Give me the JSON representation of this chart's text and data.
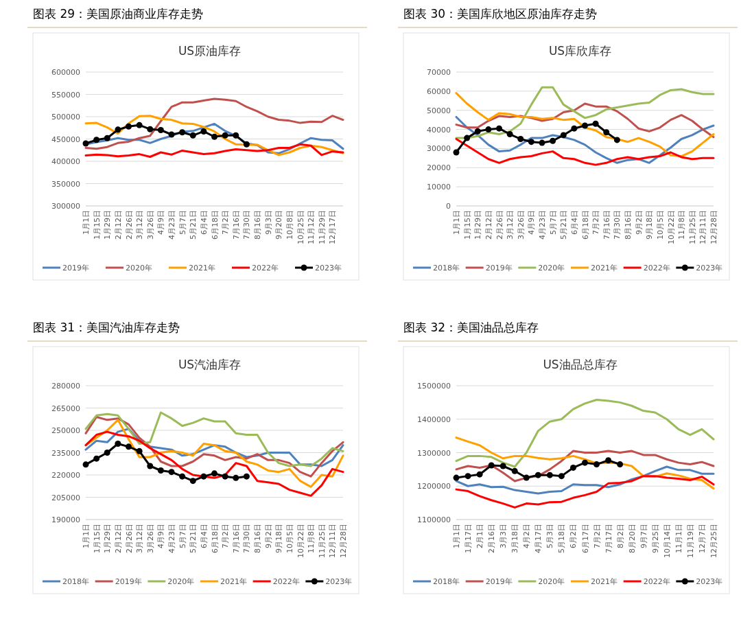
{
  "chart_data": [
    {
      "type": "line",
      "title": "图表 29：美国原油商业库存走势",
      "subtitle": "US原油库存",
      "categories": [
        "1月1日",
        "1月15日",
        "1月29日",
        "2月12日",
        "2月26日",
        "3月12日",
        "3月26日",
        "4月9日",
        "4月23日",
        "5月7日",
        "5月21日",
        "6月4日",
        "6月18日",
        "7月2日",
        "7月16日",
        "7月30日",
        "8月16日",
        "9月3日",
        "9月20日",
        "10月8日",
        "10月25日",
        "11月12日",
        "11月29日",
        "12月17日",
        null
      ],
      "ylim": [
        300000,
        600000
      ],
      "yticks": [
        300000,
        350000,
        400000,
        450000,
        500000,
        550000,
        600000
      ],
      "grid": "y",
      "legend": "bottom",
      "series": [
        {
          "name": "2019年",
          "color": "#4f81bd",
          "values": [
            438000,
            443000,
            447000,
            452000,
            448000,
            448000,
            441000,
            450000,
            457000,
            466000,
            468000,
            476000,
            484000,
            468000,
            457000,
            440000,
            436000,
            420000,
            418000,
            427000,
            440000,
            452000,
            448000,
            447000,
            428000
          ]
        },
        {
          "name": "2020年",
          "color": "#c0504d",
          "values": [
            430000,
            428000,
            432000,
            441000,
            444000,
            452000,
            457000,
            490000,
            522000,
            532000,
            532000,
            536000,
            540000,
            538000,
            535000,
            522000,
            512000,
            500000,
            493000,
            491000,
            486000,
            489000,
            488000,
            502000,
            493000
          ]
        },
        {
          "name": "2021年",
          "color": "#ffa000",
          "values": [
            485000,
            486000,
            476000,
            462000,
            485000,
            501000,
            502000,
            495000,
            493000,
            485000,
            484000,
            477000,
            467000,
            450000,
            438000,
            437000,
            437000,
            425000,
            414000,
            420000,
            430000,
            435000,
            432000,
            425000,
            418000
          ]
        },
        {
          "name": "2022年",
          "color": "#ff0000",
          "values": [
            413000,
            415000,
            414000,
            411000,
            413000,
            416000,
            410000,
            420000,
            415000,
            424000,
            420000,
            416000,
            418000,
            423000,
            427000,
            425000,
            423000,
            425000,
            430000,
            430000,
            438000,
            435000,
            414000,
            422000,
            420000
          ]
        },
        {
          "name": "2023年",
          "color": "#000000",
          "marker": "circle",
          "values": [
            440000,
            448000,
            452000,
            471000,
            478000,
            481000,
            472000,
            470000,
            460000,
            465000,
            458000,
            467000,
            455000,
            458000,
            458000,
            438000,
            null,
            null,
            null,
            null,
            null,
            null,
            null,
            null,
            null
          ]
        }
      ]
    },
    {
      "type": "line",
      "title": "图表 30：美国库欣地区原油库存走势",
      "subtitle": "US库欣库存",
      "categories": [
        "1月1日",
        "1月15日",
        "1月29日",
        "2月12日",
        "2月26日",
        "3月12日",
        "3月26日",
        "4月9日",
        "4月23日",
        "5月7日",
        "5月21日",
        "6月4日",
        "6月18日",
        "7月2日",
        "7月16日",
        "7月30日",
        "8月16日",
        "9月2日",
        "9月18日",
        "10月5日",
        "10月22日",
        "11月8日",
        "11月25日",
        "12月11日",
        "12月28日"
      ],
      "ylim": [
        0,
        70000
      ],
      "yticks": [
        0,
        10000,
        20000,
        30000,
        40000,
        50000,
        60000,
        70000
      ],
      "grid": "y",
      "legend": "bottom",
      "series": [
        {
          "name": "2018年",
          "color": "#4f81bd",
          "values": [
            46500,
            41000,
            37000,
            32000,
            28500,
            29000,
            32000,
            35500,
            35500,
            37000,
            36000,
            34500,
            32000,
            28000,
            25000,
            22500,
            24000,
            24500,
            22500,
            26500,
            30500,
            35000,
            37000,
            40000,
            42000
          ]
        },
        {
          "name": "2019年",
          "color": "#c0504d",
          "values": [
            42500,
            41000,
            41000,
            44500,
            47000,
            46500,
            47000,
            46000,
            44500,
            45500,
            49000,
            50000,
            53500,
            52000,
            52000,
            49500,
            45500,
            40500,
            39000,
            41000,
            45000,
            47500,
            44500,
            40000,
            36000
          ]
        },
        {
          "name": "2020年",
          "color": "#9bbb59",
          "values": [
            35500,
            35500,
            36500,
            38500,
            37500,
            39000,
            43000,
            53000,
            62000,
            62000,
            53000,
            49500,
            46000,
            47500,
            50500,
            51500,
            52500,
            53500,
            54000,
            58000,
            60500,
            61000,
            59500,
            58500,
            58500
          ]
        },
        {
          "name": "2021年",
          "color": "#ffa000",
          "values": [
            59000,
            53500,
            49000,
            45000,
            48500,
            48000,
            46500,
            46500,
            45500,
            46000,
            45000,
            45500,
            41000,
            39500,
            36000,
            35000,
            33500,
            35500,
            33500,
            31000,
            26500,
            26000,
            28500,
            33000,
            37500
          ]
        },
        {
          "name": "2022年",
          "color": "#ff0000",
          "values": [
            35000,
            31500,
            28000,
            24500,
            22500,
            24500,
            25500,
            26000,
            27500,
            28500,
            25000,
            24500,
            22500,
            21500,
            22500,
            24500,
            25500,
            24500,
            25500,
            26000,
            28000,
            25500,
            24500,
            25000,
            25000
          ]
        },
        {
          "name": "2023年",
          "color": "#000000",
          "marker": "circle",
          "values": [
            28000,
            35500,
            39000,
            40000,
            40500,
            37500,
            35000,
            33500,
            33000,
            34000,
            37000,
            40500,
            42000,
            43000,
            38500,
            34500,
            null,
            null,
            null,
            null,
            null,
            null,
            null,
            null,
            null
          ]
        }
      ]
    },
    {
      "type": "line",
      "title": "图表 31：美国汽油库存走势",
      "subtitle": "US汽油库存",
      "categories": [
        "1月1日",
        "1月15日",
        "1月29日",
        "2月12日",
        "2月26日",
        "3月12日",
        "3月26日",
        "4月9日",
        "4月23日",
        "5月7日",
        "5月21日",
        "6月4日",
        "6月18日",
        "7月2日",
        "7月16日",
        "7月30日",
        "8月16日",
        "9月2日",
        "9月18日",
        "10月5日",
        "10月22日",
        "11月8日",
        "11月25日",
        "12月11日",
        "12月28日"
      ],
      "ylim": [
        190000,
        280000
      ],
      "yticks": [
        190000,
        205000,
        220000,
        235000,
        250000,
        265000,
        280000
      ],
      "grid": "y",
      "legend": "bottom",
      "series": [
        {
          "name": "2018年",
          "color": "#4f81bd",
          "values": [
            237000,
            243000,
            242000,
            249000,
            251000,
            243000,
            239000,
            238000,
            237000,
            233000,
            234000,
            237000,
            240000,
            239000,
            235000,
            232000,
            233000,
            235000,
            235000,
            235000,
            227000,
            227000,
            226000,
            230000,
            240000
          ]
        },
        {
          "name": "2019年",
          "color": "#c0504d",
          "values": [
            248000,
            259000,
            257000,
            258000,
            254000,
            245000,
            239000,
            229000,
            226000,
            226000,
            229000,
            234000,
            233000,
            230000,
            232000,
            231000,
            234000,
            230000,
            230000,
            228000,
            222000,
            219000,
            228000,
            236000,
            242000
          ]
        },
        {
          "name": "2020年",
          "color": "#9bbb59",
          "values": [
            251000,
            260000,
            261000,
            260000,
            251000,
            241000,
            242000,
            262000,
            258000,
            253000,
            255000,
            258000,
            256000,
            256000,
            248000,
            247000,
            247000,
            235000,
            228000,
            226000,
            227000,
            226000,
            231000,
            238000,
            236000
          ]
        },
        {
          "name": "2021年",
          "color": "#ffa000",
          "values": [
            240000,
            245000,
            250000,
            257000,
            244000,
            232000,
            232000,
            235000,
            236000,
            235000,
            233000,
            241000,
            240000,
            236000,
            235000,
            229000,
            227000,
            223000,
            222000,
            224000,
            216000,
            212000,
            220000,
            219000,
            233000
          ]
        },
        {
          "name": "2022年",
          "color": "#ff0000",
          "values": [
            240000,
            247000,
            249000,
            247000,
            246000,
            243000,
            238000,
            234000,
            230000,
            224000,
            220000,
            219000,
            218000,
            220000,
            228000,
            226000,
            216000,
            215000,
            214000,
            210000,
            208000,
            206000,
            213000,
            224000,
            222000
          ]
        },
        {
          "name": "2023年",
          "color": "#000000",
          "marker": "circle",
          "values": [
            227000,
            231000,
            235000,
            241000,
            239000,
            236000,
            226000,
            223000,
            222000,
            219000,
            216000,
            219000,
            221000,
            219000,
            218000,
            219000,
            null,
            null,
            null,
            null,
            null,
            null,
            null,
            null,
            null
          ]
        }
      ]
    },
    {
      "type": "line",
      "title": "图表 32：美国油品总库存",
      "subtitle": "US油品总库存",
      "categories": [
        "1月1日",
        "1月17日",
        "2月1日",
        "2月16日",
        "3月3日",
        "3月18日",
        "4月2日",
        "4月17日",
        "5月3日",
        "5月18日",
        "6月2日",
        "6月17日",
        "7月2日",
        "7月17日",
        "8月2日",
        "8月20日",
        "9月7日",
        "9月25日",
        "10月14日",
        "11月1日",
        "11月19日",
        "12月7日",
        "12月25日"
      ],
      "ylim": [
        1100000,
        1500000
      ],
      "yticks": [
        1100000,
        1200000,
        1300000,
        1400000,
        1500000
      ],
      "grid": "y",
      "legend": "bottom",
      "series": [
        {
          "name": "2018年",
          "color": "#4f81bd",
          "values": [
            1215000,
            1200000,
            1205000,
            1197000,
            1198000,
            1188000,
            1183000,
            1178000,
            1183000,
            1185000,
            1205000,
            1203000,
            1203000,
            1197000,
            1205000,
            1220000,
            1230000,
            1245000,
            1258000,
            1248000,
            1248000,
            1237000,
            1237000
          ]
        },
        {
          "name": "2019年",
          "color": "#c0504d",
          "values": [
            1250000,
            1260000,
            1255000,
            1262000,
            1240000,
            1215000,
            1225000,
            1230000,
            1250000,
            1275000,
            1305000,
            1300000,
            1300000,
            1305000,
            1300000,
            1305000,
            1293000,
            1293000,
            1280000,
            1270000,
            1265000,
            1272000,
            1260000
          ]
        },
        {
          "name": "2020年",
          "color": "#9bbb59",
          "values": [
            1275000,
            1290000,
            1290000,
            1287000,
            1270000,
            1258000,
            1300000,
            1365000,
            1393000,
            1400000,
            1430000,
            1447000,
            1458000,
            1455000,
            1450000,
            1440000,
            1425000,
            1420000,
            1400000,
            1370000,
            1353000,
            1370000,
            1340000
          ]
        },
        {
          "name": "2021年",
          "color": "#ffa000",
          "values": [
            1345000,
            1333000,
            1322000,
            1300000,
            1283000,
            1290000,
            1290000,
            1284000,
            1280000,
            1283000,
            1290000,
            1280000,
            1268000,
            1270000,
            1268000,
            1260000,
            1230000,
            1228000,
            1238000,
            1232000,
            1222000,
            1218000,
            1193000
          ]
        },
        {
          "name": "2022年",
          "color": "#ff0000",
          "values": [
            1190000,
            1185000,
            1170000,
            1158000,
            1148000,
            1136000,
            1148000,
            1145000,
            1152000,
            1153000,
            1165000,
            1173000,
            1183000,
            1208000,
            1210000,
            1215000,
            1230000,
            1230000,
            1225000,
            1222000,
            1218000,
            1228000,
            1205000
          ]
        },
        {
          "name": "2023年",
          "color": "#000000",
          "marker": "circle",
          "values": [
            1225000,
            1230000,
            1235000,
            1262000,
            1260000,
            1245000,
            1225000,
            1233000,
            1233000,
            1230000,
            1255000,
            1270000,
            1265000,
            1277000,
            1265000,
            null,
            null,
            null,
            null,
            null,
            null,
            null,
            null
          ]
        }
      ]
    }
  ]
}
